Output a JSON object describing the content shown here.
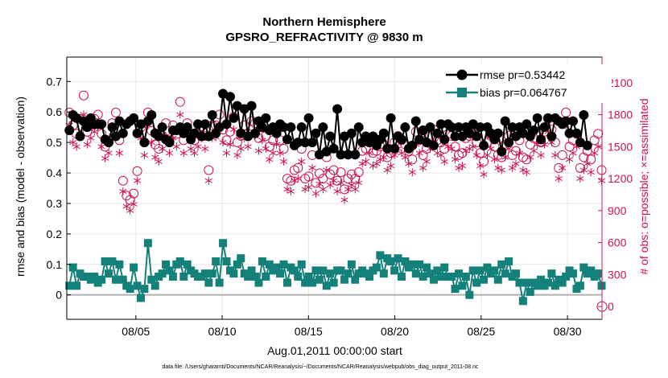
{
  "chart_data": {
    "type": "line",
    "title": "Northern Hemisphere",
    "subtitle": "GPSRO_REFRACTIVITY @ 9830 m",
    "xlabel": "Aug.01,2011 00:00:00 start",
    "ylabel": "rmse and bias (model - observation)",
    "ylabel_right": "# of obs: o=possible; ×=assimilated",
    "footnote": "data file: /Users/gharamti/Documents/NCAR/Reanalysis/~/Documents/NCAR/Reanalysis/webpub/obs_diag_output_2011-08.nc",
    "xlim": [
      1,
      32
    ],
    "ylim": [
      -0.08,
      0.78
    ],
    "ylim_right": [
      -120,
      2340
    ],
    "x_ticks": [
      5,
      10,
      15,
      20,
      25,
      30
    ],
    "x_tick_labels": [
      "08/05",
      "08/10",
      "08/15",
      "08/20",
      "08/25",
      "08/30"
    ],
    "y_ticks": [
      0,
      0.1,
      0.2,
      0.3,
      0.4,
      0.5,
      0.6,
      0.7
    ],
    "y_tick_labels": [
      "0",
      "0.1",
      "0.2",
      "0.3",
      "0.4",
      "0.5",
      "0.6",
      "0.7"
    ],
    "y_right_ticks": [
      0,
      300,
      600,
      900,
      1200,
      1500,
      1800,
      2100
    ],
    "y_right_tick_labels": [
      "0",
      "300",
      "600",
      "900",
      "1200",
      "1500",
      "1800",
      "2100"
    ],
    "grid": true,
    "legend_position": "top-right",
    "series": [
      {
        "name": "rmse pr=0.53442",
        "color": "#000000",
        "marker": "circle-filled",
        "values": [
          0.54,
          0.59,
          0.58,
          0.52,
          0.57,
          0.55,
          0.58,
          0.56,
          0.56,
          0.56,
          0.51,
          0.5,
          0.55,
          0.52,
          0.57,
          0.53,
          0.56,
          0.57,
          0.58,
          0.53,
          0.56,
          0.5,
          0.57,
          0.59,
          0.53,
          0.52,
          0.55,
          0.51,
          0.5,
          0.54,
          0.54,
          0.55,
          0.53,
          0.55,
          0.51,
          0.53,
          0.56,
          0.52,
          0.56,
          0.52,
          0.59,
          0.53,
          0.55,
          0.66,
          0.56,
          0.65,
          0.58,
          0.62,
          0.53,
          0.61,
          0.52,
          0.62,
          0.53,
          0.57,
          0.55,
          0.58,
          0.54,
          0.55,
          0.53,
          0.56,
          0.55,
          0.51,
          0.55,
          0.49,
          0.5,
          0.55,
          0.5,
          0.58,
          0.5,
          0.53,
          0.46,
          0.55,
          0.47,
          0.52,
          0.48,
          0.61,
          0.46,
          0.52,
          0.46,
          0.53,
          0.46,
          0.55,
          0.5,
          0.52,
          0.5,
          0.52,
          0.49,
          0.51,
          0.53,
          0.48,
          0.58,
          0.48,
          0.52,
          0.51,
          0.55,
          0.48,
          0.49,
          0.57,
          0.51,
          0.54,
          0.5,
          0.55,
          0.49,
          0.53,
          0.56,
          0.51,
          0.56,
          0.55,
          0.52,
          0.55,
          0.52,
          0.55,
          0.53,
          0.56,
          0.52,
          0.55,
          0.49,
          0.55,
          0.53,
          0.51,
          0.53,
          0.47,
          0.57,
          0.5,
          0.55,
          0.52,
          0.55,
          0.53,
          0.56,
          0.52,
          0.54,
          0.58,
          0.51,
          0.55,
          0.58,
          0.52,
          0.58,
          0.57,
          0.56,
          0.57,
          0.53,
          0.57,
          0.53,
          0.5,
          0.59,
          0.49
        ],
        "x_start": 1.15,
        "x_step": 0.2069
      },
      {
        "name": "bias pr=0.064767",
        "color": "#14807a",
        "marker": "square-filled",
        "values": [
          0.03,
          0.09,
          0.03,
          0.07,
          0.06,
          0.06,
          0.05,
          0.06,
          0.04,
          0.05,
          0.11,
          0.07,
          0.11,
          0.05,
          0.1,
          0.05,
          0.03,
          0.02,
          0.09,
          0.03,
          -0.01,
          0.02,
          0.17,
          0.05,
          0.03,
          0.06,
          0.07,
          0.1,
          0.08,
          0.06,
          0.1,
          0.11,
          0.06,
          0.1,
          0.08,
          0.07,
          0.06,
          0.06,
          0.07,
          0.04,
          0.07,
          0.11,
          0.04,
          0.17,
          0.11,
          0.08,
          0.07,
          0.1,
          0.12,
          0.07,
          0.06,
          0.08,
          0.06,
          0.04,
          0.11,
          0.06,
          0.1,
          0.08,
          0.09,
          0.07,
          0.1,
          0.04,
          0.09,
          0.08,
          0.06,
          0.1,
          0.04,
          0.06,
          0.04,
          0.08,
          0.05,
          0.08,
          0.03,
          0.07,
          0.04,
          0.08,
          0.08,
          0.05,
          0.07,
          0.1,
          0.05,
          0.07,
          0.08,
          0.07,
          0.06,
          0.08,
          0.09,
          0.13,
          0.07,
          0.12,
          0.11,
          0.08,
          0.12,
          0.06,
          0.11,
          0.09,
          0.1,
          0.07,
          0.1,
          0.06,
          0.09,
          0.07,
          0.05,
          0.08,
          0.06,
          0.09,
          0.06,
          0.06,
          0.02,
          0.07,
          0.03,
          0.06,
          0.0,
          0.08,
          0.04,
          0.08,
          0.05,
          0.09,
          0.07,
          0.08,
          0.05,
          0.1,
          0.07,
          0.11,
          0.06,
          0.07,
          0.04,
          -0.02,
          0.04,
          0.01,
          0.04,
          0.03,
          0.05,
          0.03,
          0.04,
          0.07,
          0.03,
          0.05,
          0.04,
          0.06,
          0.08,
          0.07,
          0.02,
          0.03,
          0.09,
          0.07,
          0.08,
          0.06,
          0.07,
          0.03
        ],
        "x_start": 1.15,
        "x_step": 0.2069
      },
      {
        "name": "possible (o)",
        "color": "#cc1155",
        "marker": "circle-open",
        "axis": "right",
        "values": [
          1820,
          1700,
          1620,
          1760,
          1980,
          1640,
          1700,
          1760,
          1800,
          1620,
          1500,
          1560,
          1720,
          1820,
          1560,
          1180,
          1040,
          1000,
          1060,
          1270,
          1680,
          1540,
          1820,
          1650,
          1520,
          1480,
          1600,
          1720,
          1560,
          1700,
          1620,
          1920,
          1560,
          1720,
          1600,
          1560,
          1620,
          1690,
          1600,
          1280,
          1700,
          1700,
          1800,
          1660,
          1560,
          1640,
          1780,
          1540,
          1600,
          1700,
          1620,
          1740,
          1720,
          1580,
          1680,
          1600,
          1500,
          1560,
          1640,
          1560,
          1480,
          1200,
          1180,
          1280,
          1300,
          1480,
          1200,
          1220,
          1420,
          1160,
          1250,
          1200,
          1400,
          1240,
          1280,
          1180,
          1260,
          1100,
          1200,
          1240,
          1200,
          1260,
          1460,
          1480,
          1560,
          1440,
          1460,
          1500,
          1520,
          1400,
          1440,
          1540,
          1600,
          1560,
          1520,
          1460,
          1380,
          1640,
          1560,
          1420,
          1480,
          1600,
          1660,
          1560,
          1540,
          1480,
          1620,
          1600,
          1500,
          1420,
          1440,
          1580,
          1600,
          1620,
          1540,
          1440,
          1360,
          1540,
          1600,
          1500,
          1420,
          1400,
          1520,
          1600,
          1420,
          1460,
          1560,
          1400,
          1380,
          1520,
          1580,
          1640,
          1540,
          1640,
          1760,
          1660,
          1540,
          1300,
          1420,
          1820,
          1500,
          1560,
          1620,
          1300,
          1400,
          1460,
          1380,
          1560,
          1620,
          1280
        ],
        "x_start": 1.15,
        "x_step": 0.2069
      },
      {
        "name": "assimilated (x)",
        "color": "#cc1155",
        "marker": "asterisk",
        "axis": "right",
        "values": [
          1700,
          1540,
          1500,
          1620,
          1800,
          1520,
          1580,
          1640,
          1680,
          1500,
          1390,
          1440,
          1600,
          1700,
          1440,
          1080,
          940,
          900,
          960,
          1180,
          1580,
          1420,
          1700,
          1540,
          1400,
          1360,
          1480,
          1600,
          1440,
          1580,
          1500,
          1800,
          1440,
          1600,
          1480,
          1440,
          1500,
          1580,
          1480,
          1180,
          1580,
          1590,
          1680,
          1540,
          1440,
          1520,
          1660,
          1420,
          1480,
          1580,
          1500,
          1620,
          1600,
          1460,
          1560,
          1480,
          1380,
          1440,
          1520,
          1440,
          1360,
          1100,
          1080,
          1180,
          1200,
          1360,
          1100,
          1120,
          1300,
          1060,
          1150,
          1100,
          1280,
          1140,
          1180,
          1080,
          1160,
          1000,
          1100,
          1140,
          1100,
          1160,
          1340,
          1360,
          1440,
          1320,
          1340,
          1380,
          1400,
          1280,
          1320,
          1420,
          1480,
          1440,
          1400,
          1340,
          1260,
          1520,
          1440,
          1300,
          1360,
          1480,
          1540,
          1440,
          1420,
          1360,
          1500,
          1480,
          1380,
          1300,
          1320,
          1460,
          1480,
          1500,
          1420,
          1320,
          1240,
          1420,
          1480,
          1380,
          1300,
          1280,
          1400,
          1480,
          1300,
          1340,
          1440,
          1280,
          1260,
          1400,
          1460,
          1520,
          1420,
          1520,
          1640,
          1540,
          1420,
          1200,
          1300,
          1700,
          1380,
          1440,
          1500,
          1200,
          1280,
          1340,
          1260,
          1440,
          1500,
          1180
        ],
        "x_start": 1.15,
        "x_step": 0.2069
      }
    ],
    "zero_line_value": 0
  }
}
